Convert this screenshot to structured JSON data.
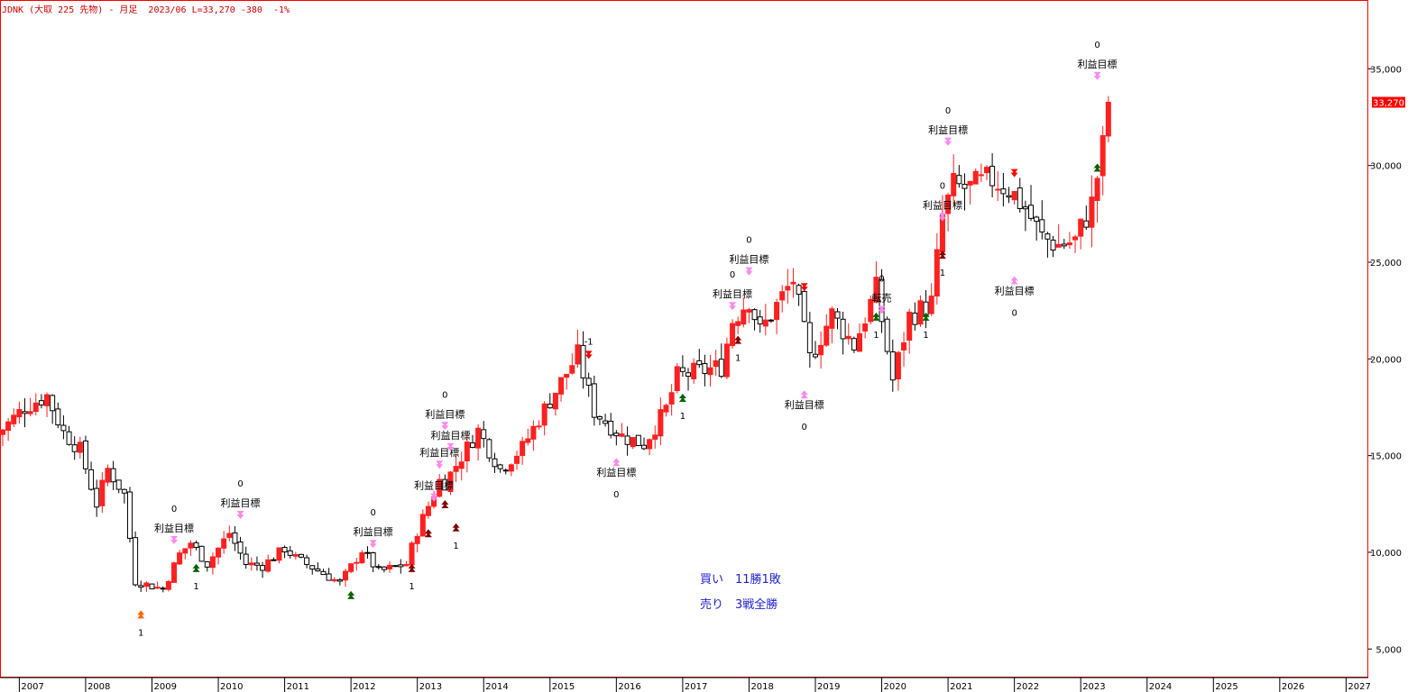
{
  "header": {
    "symbol": "JDNK",
    "market": "(大取 225 先物)",
    "separator": "-",
    "period": "月足",
    "date": "2023/06",
    "last": "L=33,270",
    "change": "-380",
    "change_pct": "-1%"
  },
  "stats": {
    "buy": "買い　11勝1敗",
    "sell": "売り　3戦全勝"
  },
  "colors": {
    "up": "#ff2020",
    "down": "#000000",
    "frame": "#ff0000",
    "target_arrow": "#ff88ee",
    "buy_arrow": "#006400",
    "buy_arrow_dark": "#800000",
    "sell_arrow": "#ff0000",
    "first_buy_arrow": "#ff6600",
    "price_tag": "#ff0000",
    "stats_text": "#2222cc"
  },
  "chart_data": {
    "type": "candlestick",
    "interval": "monthly",
    "x_range": [
      "2006-09",
      "2027-09"
    ],
    "ylim": [
      4500,
      38000
    ],
    "x_ticks": [
      "2007",
      "2008",
      "2009",
      "2010",
      "2011",
      "2012",
      "2013",
      "2014",
      "2015",
      "2016",
      "2017",
      "2018",
      "2019",
      "2020",
      "2021",
      "2022",
      "2023",
      "2024",
      "2025",
      "2026",
      "2027"
    ],
    "y_ticks": [
      "5,000",
      "10,000",
      "15,000",
      "20,000",
      "25,000",
      "30,000",
      "35,000"
    ],
    "last_price_tag": "33,270",
    "anchors": [
      {
        "t": "2006-09",
        "p": 16100
      },
      {
        "t": "2007-02",
        "p": 17500
      },
      {
        "t": "2007-06",
        "p": 18100
      },
      {
        "t": "2007-09",
        "p": 16200
      },
      {
        "t": "2007-12",
        "p": 15300
      },
      {
        "t": "2008-03",
        "p": 12500
      },
      {
        "t": "2008-05",
        "p": 14300
      },
      {
        "t": "2008-08",
        "p": 13000
      },
      {
        "t": "2008-10",
        "p": 8500
      },
      {
        "t": "2009-03",
        "p": 8100
      },
      {
        "t": "2009-06",
        "p": 9900
      },
      {
        "t": "2009-08",
        "p": 10500
      },
      {
        "t": "2009-11",
        "p": 9400
      },
      {
        "t": "2010-03",
        "p": 11000
      },
      {
        "t": "2010-06",
        "p": 9400
      },
      {
        "t": "2010-09",
        "p": 9300
      },
      {
        "t": "2011-01",
        "p": 10200
      },
      {
        "t": "2011-03",
        "p": 9700
      },
      {
        "t": "2011-08",
        "p": 8900
      },
      {
        "t": "2011-11",
        "p": 8400
      },
      {
        "t": "2012-03",
        "p": 10100
      },
      {
        "t": "2012-06",
        "p": 9000
      },
      {
        "t": "2012-11",
        "p": 9400
      },
      {
        "t": "2013-01",
        "p": 11100
      },
      {
        "t": "2013-05",
        "p": 13700
      },
      {
        "t": "2013-06",
        "p": 13600
      },
      {
        "t": "2013-12",
        "p": 16300
      },
      {
        "t": "2014-04",
        "p": 14300
      },
      {
        "t": "2014-08",
        "p": 15400
      },
      {
        "t": "2014-12",
        "p": 17400
      },
      {
        "t": "2015-06",
        "p": 20200
      },
      {
        "t": "2015-09",
        "p": 17300
      },
      {
        "t": "2016-02",
        "p": 16000
      },
      {
        "t": "2016-06",
        "p": 15600
      },
      {
        "t": "2016-10",
        "p": 17400
      },
      {
        "t": "2016-12",
        "p": 19100
      },
      {
        "t": "2017-08",
        "p": 19600
      },
      {
        "t": "2017-10",
        "p": 22000
      },
      {
        "t": "2018-01",
        "p": 23100
      },
      {
        "t": "2018-03",
        "p": 21400
      },
      {
        "t": "2018-09",
        "p": 24100
      },
      {
        "t": "2018-12",
        "p": 20000
      },
      {
        "t": "2019-04",
        "p": 22300
      },
      {
        "t": "2019-08",
        "p": 20700
      },
      {
        "t": "2019-12",
        "p": 23600
      },
      {
        "t": "2020-03",
        "p": 18900
      },
      {
        "t": "2020-06",
        "p": 22200
      },
      {
        "t": "2020-10",
        "p": 22900
      },
      {
        "t": "2020-12",
        "p": 27400
      },
      {
        "t": "2021-02",
        "p": 28900
      },
      {
        "t": "2021-05",
        "p": 28800
      },
      {
        "t": "2021-09",
        "p": 29300
      },
      {
        "t": "2021-12",
        "p": 28800
      },
      {
        "t": "2022-03",
        "p": 27800
      },
      {
        "t": "2022-06",
        "p": 26300
      },
      {
        "t": "2022-09",
        "p": 25900
      },
      {
        "t": "2022-12",
        "p": 26100
      },
      {
        "t": "2023-03",
        "p": 28000
      },
      {
        "t": "2023-05",
        "p": 30900
      },
      {
        "t": "2023-06",
        "p": 33270
      }
    ],
    "signals": [
      {
        "t": "2008-11",
        "p": 7000,
        "kind": "buy-first",
        "num": "1"
      },
      {
        "t": "2009-05",
        "p": 10700,
        "kind": "target",
        "label": "利益目標",
        "num": "0"
      },
      {
        "t": "2009-09",
        "p": 9400,
        "kind": "buy",
        "num": "1"
      },
      {
        "t": "2010-05",
        "p": 12000,
        "kind": "target",
        "label": "利益目標",
        "num": "0"
      },
      {
        "t": "2012-01",
        "p": 8000,
        "kind": "buy",
        "num": ""
      },
      {
        "t": "2012-05",
        "p": 10500,
        "kind": "target",
        "label": "利益目標",
        "num": "0"
      },
      {
        "t": "2012-12",
        "p": 9400,
        "kind": "buy-dark",
        "num": "1"
      },
      {
        "t": "2013-03",
        "p": 11200,
        "kind": "buy-dark",
        "num": ""
      },
      {
        "t": "2013-04",
        "p": 12900,
        "kind": "target",
        "label": "利益目標",
        "num": ""
      },
      {
        "t": "2013-05",
        "p": 14600,
        "kind": "target",
        "label": "利益目標",
        "num": ""
      },
      {
        "t": "2013-06",
        "p": 16600,
        "kind": "target",
        "label": "利益目標",
        "num": "0"
      },
      {
        "t": "2013-07",
        "p": 15500,
        "kind": "target",
        "label": "利益目標",
        "num": ""
      },
      {
        "t": "2013-06",
        "p": 12700,
        "kind": "buy-dark",
        "num": ""
      },
      {
        "t": "2013-08",
        "p": 11500,
        "kind": "buy-dark",
        "num": "1"
      },
      {
        "t": "2015-08",
        "p": 20000,
        "kind": "sell",
        "num": "-1"
      },
      {
        "t": "2016-01",
        "p": 14600,
        "kind": "target-up",
        "label": "利益目標",
        "num": "0"
      },
      {
        "t": "2017-01",
        "p": 18200,
        "kind": "buy",
        "num": "1"
      },
      {
        "t": "2017-10",
        "p": 22800,
        "kind": "target",
        "label": "利益目標",
        "num": "0"
      },
      {
        "t": "2017-11",
        "p": 21200,
        "kind": "buy-dark",
        "num": "1"
      },
      {
        "t": "2018-01",
        "p": 24600,
        "kind": "target",
        "label": "利益目標",
        "num": "0"
      },
      {
        "t": "2018-11",
        "p": 23500,
        "kind": "sell",
        "num": ""
      },
      {
        "t": "2018-11",
        "p": 18100,
        "kind": "target-up",
        "label": "利益目標",
        "num": "0"
      },
      {
        "t": "2019-12",
        "p": 22400,
        "kind": "buy",
        "num": "1"
      },
      {
        "t": "2020-01",
        "p": 22600,
        "kind": "target",
        "label": "転売",
        "num": "0"
      },
      {
        "t": "2020-09",
        "p": 22400,
        "kind": "buy",
        "num": "1"
      },
      {
        "t": "2020-12",
        "p": 27400,
        "kind": "target",
        "label": "利益目標",
        "num": "0"
      },
      {
        "t": "2020-12",
        "p": 25600,
        "kind": "buy-dark",
        "num": "1"
      },
      {
        "t": "2021-01",
        "p": 31300,
        "kind": "target",
        "label": "利益目標",
        "num": "0"
      },
      {
        "t": "2022-01",
        "p": 29400,
        "kind": "sell",
        "num": ""
      },
      {
        "t": "2022-01",
        "p": 24000,
        "kind": "target-up",
        "label": "利益目標",
        "num": "0"
      },
      {
        "t": "2023-04",
        "p": 34700,
        "kind": "target",
        "label": "利益目標",
        "num": "0"
      },
      {
        "t": "2023-04",
        "p": 30100,
        "kind": "buy",
        "num": ""
      }
    ]
  }
}
